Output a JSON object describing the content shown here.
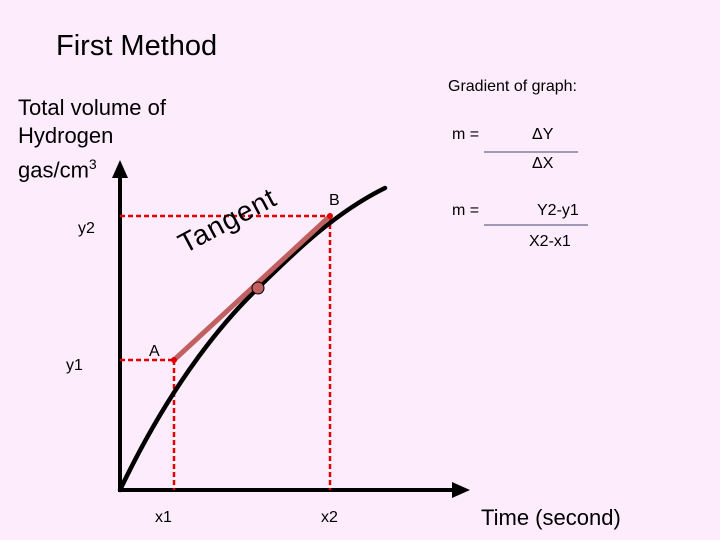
{
  "title": "First Method",
  "y_axis_label_line1": "Total volume of",
  "y_axis_label_line2": "Hydrogen",
  "y_axis_label_line3_base": "gas/cm",
  "y_axis_label_line3_sup": "3",
  "x_axis_label": "Time  (second)",
  "gradient": {
    "heading": "Gradient of graph:",
    "m_label_1": "m =",
    "numerator_1": "ΔY",
    "denominator_1": "ΔX",
    "m_label_2": "m =",
    "numerator_2": "Y2-y1",
    "denominator_2": "X2-x1"
  },
  "points": {
    "a_label": "A",
    "b_label": "B"
  },
  "ticks": {
    "y2": "y2",
    "y1": "y1",
    "x1": "x1",
    "x2": "x2"
  },
  "tangent_label": "Tangent",
  "colors": {
    "background": "#fcecfc",
    "curve": "#000000",
    "tangent": "#c06060",
    "dashed_guides": "#e00000",
    "axes": "#000000"
  }
}
